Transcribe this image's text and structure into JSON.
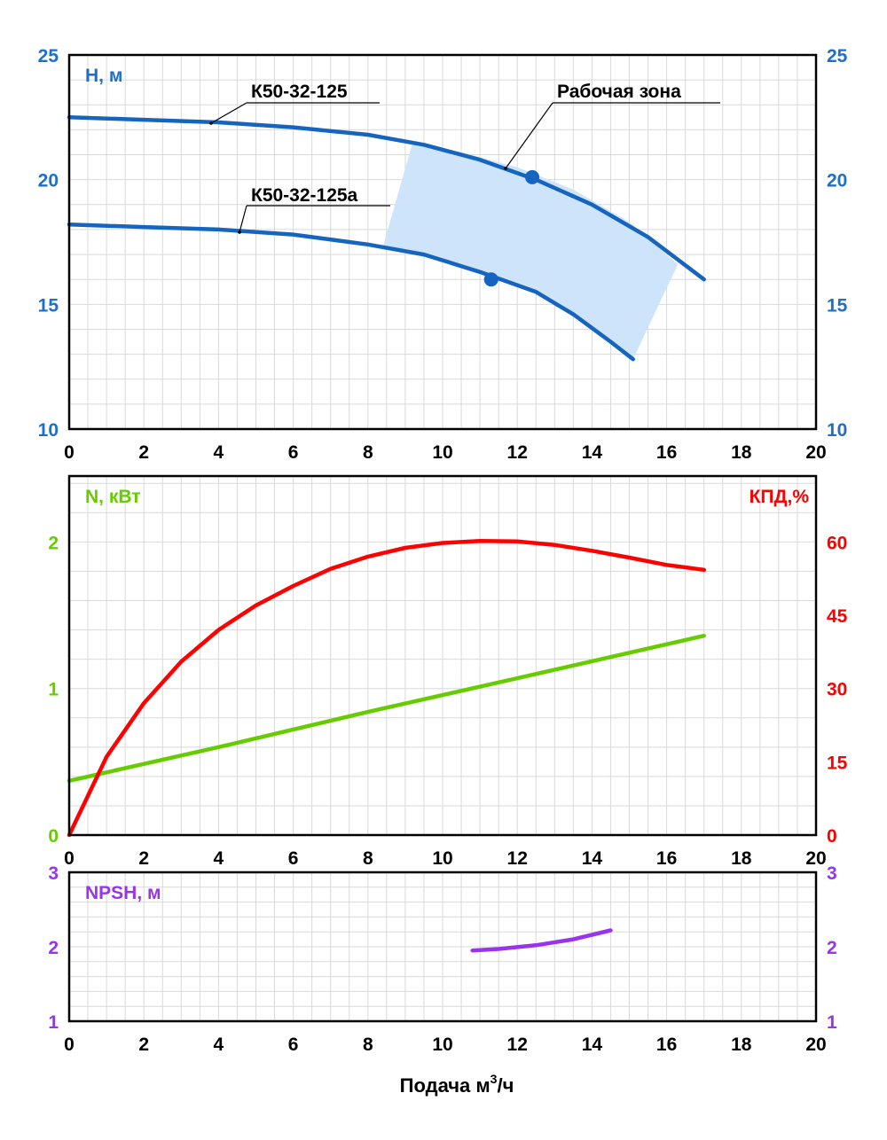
{
  "chart_data": [
    {
      "type": "line",
      "panel": "head",
      "x": {
        "ticks": [
          0,
          2,
          4,
          6,
          8,
          10,
          12,
          14,
          16,
          18,
          20
        ],
        "range": [
          0,
          20
        ]
      },
      "y_left": {
        "label": "H, м",
        "ticks": [
          10,
          15,
          20,
          25
        ],
        "range": [
          10,
          25
        ],
        "color": "#1f6fc9"
      },
      "y_right": {
        "ticks": [
          10,
          15,
          20,
          25
        ],
        "range": [
          10,
          25
        ],
        "color": "#1f6fc9"
      },
      "series": [
        {
          "name": "К50-32-125",
          "color": "#1565c0",
          "points": [
            [
              0,
              22.5
            ],
            [
              2,
              22.4
            ],
            [
              4,
              22.3
            ],
            [
              6,
              22.1
            ],
            [
              8,
              21.8
            ],
            [
              9.5,
              21.4
            ],
            [
              11,
              20.8
            ],
            [
              12.5,
              20.0
            ],
            [
              14,
              19.0
            ],
            [
              15.5,
              17.7
            ],
            [
              17,
              16.0
            ]
          ],
          "marker": [
            12.4,
            20.1
          ]
        },
        {
          "name": "К50-32-125а",
          "color": "#1565c0",
          "points": [
            [
              0,
              18.2
            ],
            [
              2,
              18.1
            ],
            [
              4,
              18.0
            ],
            [
              6,
              17.8
            ],
            [
              8,
              17.4
            ],
            [
              9.5,
              17.0
            ],
            [
              11,
              16.3
            ],
            [
              12.5,
              15.5
            ],
            [
              13.5,
              14.6
            ],
            [
              14.5,
              13.5
            ],
            [
              15.1,
              12.8
            ]
          ],
          "marker": [
            11.3,
            16.0
          ]
        }
      ],
      "zone": {
        "label": "Рабочая зона",
        "color": "#cde4fb",
        "upper": [
          [
            9.2,
            21.5
          ],
          [
            10.5,
            21.1
          ],
          [
            12,
            20.5
          ],
          [
            13.5,
            19.6
          ],
          [
            15,
            18.3
          ],
          [
            16.3,
            16.6
          ]
        ],
        "lower": [
          [
            15.1,
            12.8
          ],
          [
            14.5,
            13.5
          ],
          [
            13.5,
            14.6
          ],
          [
            12.5,
            15.5
          ],
          [
            11,
            16.3
          ],
          [
            9.5,
            17.0
          ],
          [
            8.4,
            17.3
          ]
        ]
      }
    },
    {
      "type": "line",
      "panel": "power_efficiency",
      "x": {
        "ticks": [
          0,
          2,
          4,
          6,
          8,
          10,
          12,
          14,
          16,
          18,
          20
        ],
        "range": [
          0,
          20
        ]
      },
      "y_left": {
        "label": "N, кВт",
        "ticks": [
          0,
          1,
          2
        ],
        "range": [
          0,
          2.45
        ],
        "color": "#66cc00"
      },
      "y_right": {
        "label": "КПД,%",
        "ticks": [
          0,
          15,
          30,
          45,
          60
        ],
        "range": [
          0,
          73.5
        ],
        "color": "#ff0000"
      },
      "series": [
        {
          "name": "N",
          "axis": "left",
          "color": "#66cc00",
          "points": [
            [
              0,
              0.37
            ],
            [
              4,
              0.6
            ],
            [
              8,
              0.84
            ],
            [
              12,
              1.07
            ],
            [
              17,
              1.36
            ]
          ]
        },
        {
          "name": "КПД",
          "axis": "right",
          "color": "#ff0000",
          "points": [
            [
              0,
              0
            ],
            [
              1,
              16
            ],
            [
              2,
              27
            ],
            [
              3,
              35.5
            ],
            [
              4,
              42
            ],
            [
              5,
              47
            ],
            [
              6,
              51
            ],
            [
              7,
              54.5
            ],
            [
              8,
              57
            ],
            [
              9,
              58.8
            ],
            [
              10,
              59.8
            ],
            [
              11,
              60.2
            ],
            [
              12,
              60.1
            ],
            [
              13,
              59.4
            ],
            [
              14,
              58.2
            ],
            [
              15,
              56.8
            ],
            [
              16,
              55.3
            ],
            [
              17,
              54.3
            ]
          ]
        }
      ]
    },
    {
      "type": "line",
      "panel": "npsh",
      "x": {
        "ticks": [
          0,
          2,
          4,
          6,
          8,
          10,
          12,
          14,
          16,
          18,
          20
        ],
        "range": [
          0,
          20
        ],
        "label": "Подача м",
        "label_sup": "3",
        "label_tail": "/ч"
      },
      "y_left": {
        "label": "NPSH, м",
        "ticks": [
          1,
          2,
          3
        ],
        "range": [
          1,
          3
        ],
        "color": "#9933ee"
      },
      "y_right": {
        "ticks": [
          1,
          2,
          3
        ],
        "range": [
          1,
          3
        ],
        "color": "#9933ee"
      },
      "series": [
        {
          "name": "NPSH",
          "color": "#9933ee",
          "points": [
            [
              10.8,
              1.95
            ],
            [
              11.5,
              1.97
            ],
            [
              12.5,
              2.02
            ],
            [
              13.5,
              2.1
            ],
            [
              14.5,
              2.22
            ]
          ]
        }
      ]
    }
  ]
}
